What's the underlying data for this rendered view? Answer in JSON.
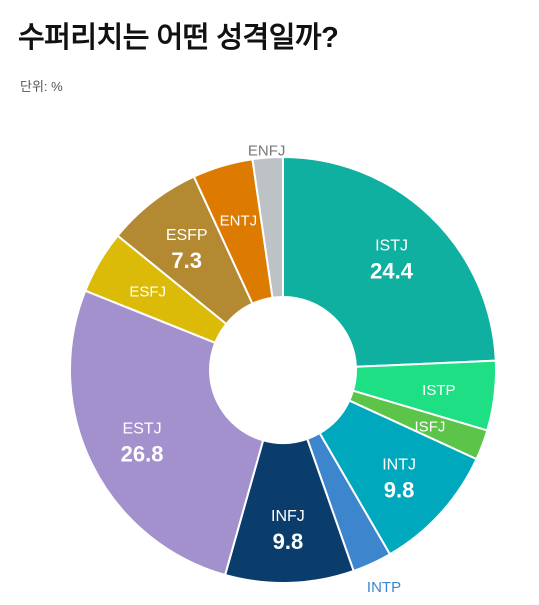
{
  "header": {
    "title": "수퍼리치는 어떤 성격일까?",
    "unit": "단위: %"
  },
  "chart_data": {
    "type": "pie",
    "title": "수퍼리치는 어떤 성격일까?",
    "unit": "%",
    "slices": [
      {
        "label": "ISTJ",
        "value": 24.4,
        "value_label": "24.4",
        "color": "#10b0a0",
        "text_color": "#ffffff",
        "label_outside": false
      },
      {
        "label": "ISTP",
        "value": 5.3,
        "value_label": "",
        "color": "#1edf84",
        "text_color": "#ffffff",
        "label_outside": false
      },
      {
        "label": "ISFJ",
        "value": 2.3,
        "value_label": "",
        "color": "#5cc448",
        "text_color": "#ffffff",
        "label_outside": false
      },
      {
        "label": "INTJ",
        "value": 9.8,
        "value_label": "9.8",
        "color": "#00a8bd",
        "text_color": "#ffffff",
        "label_outside": false
      },
      {
        "label": "INTP",
        "value": 3.0,
        "value_label": "",
        "color": "#3d85cc",
        "text_color": "#3d85cc",
        "label_outside": true
      },
      {
        "label": "INFJ",
        "value": 9.8,
        "value_label": "9.8",
        "color": "#0a3d6b",
        "text_color": "#ffffff",
        "label_outside": false
      },
      {
        "label": "ESTJ",
        "value": 26.8,
        "value_label": "26.8",
        "color": "#a291cc",
        "text_color": "#ffffff",
        "label_outside": false
      },
      {
        "label": "ESFJ",
        "value": 4.8,
        "value_label": "",
        "color": "#dbbb07",
        "text_color": "#ffffff",
        "label_outside": false
      },
      {
        "label": "ESFP",
        "value": 7.3,
        "value_label": "7.3",
        "color": "#b38a32",
        "text_color": "#ffffff",
        "label_outside": false
      },
      {
        "label": "ENTJ",
        "value": 4.6,
        "value_label": "",
        "color": "#dd7a00",
        "text_color": "#ffffff",
        "label_outside": false
      },
      {
        "label": "ENFJ",
        "value": 2.3,
        "value_label": "",
        "color": "#bcc2c6",
        "text_color": "#777777",
        "label_outside": true
      }
    ]
  }
}
